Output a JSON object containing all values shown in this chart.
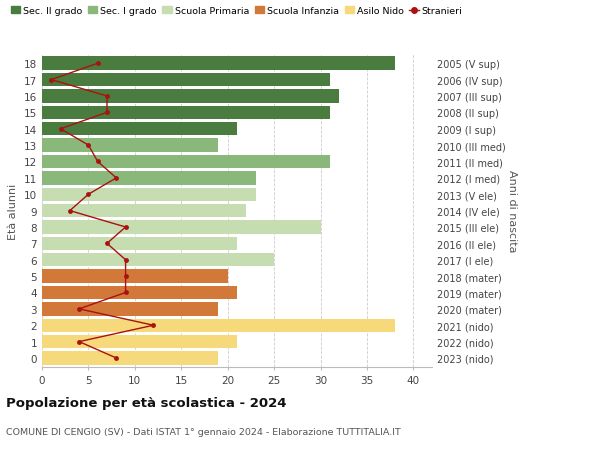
{
  "ages": [
    18,
    17,
    16,
    15,
    14,
    13,
    12,
    11,
    10,
    9,
    8,
    7,
    6,
    5,
    4,
    3,
    2,
    1,
    0
  ],
  "bar_values": [
    38,
    31,
    32,
    31,
    21,
    19,
    31,
    23,
    23,
    22,
    30,
    21,
    25,
    20,
    21,
    19,
    38,
    21,
    19
  ],
  "bar_colors": [
    "#4a7c3f",
    "#4a7c3f",
    "#4a7c3f",
    "#4a7c3f",
    "#4a7c3f",
    "#8ab87a",
    "#8ab87a",
    "#8ab87a",
    "#c5ddb0",
    "#c5ddb0",
    "#c5ddb0",
    "#c5ddb0",
    "#c5ddb0",
    "#d2793a",
    "#d2793a",
    "#d2793a",
    "#f5d97a",
    "#f5d97a",
    "#f5d97a"
  ],
  "stranieri_values": [
    6,
    1,
    7,
    7,
    2,
    5,
    6,
    8,
    5,
    3,
    9,
    7,
    9,
    9,
    9,
    4,
    12,
    4,
    8
  ],
  "right_labels": [
    "2005 (V sup)",
    "2006 (IV sup)",
    "2007 (III sup)",
    "2008 (II sup)",
    "2009 (I sup)",
    "2010 (III med)",
    "2011 (II med)",
    "2012 (I med)",
    "2013 (V ele)",
    "2014 (IV ele)",
    "2015 (III ele)",
    "2016 (II ele)",
    "2017 (I ele)",
    "2018 (mater)",
    "2019 (mater)",
    "2020 (mater)",
    "2021 (nido)",
    "2022 (nido)",
    "2023 (nido)"
  ],
  "legend_labels": [
    "Sec. II grado",
    "Sec. I grado",
    "Scuola Primaria",
    "Scuola Infanzia",
    "Asilo Nido",
    "Stranieri"
  ],
  "legend_colors": [
    "#4a7c3f",
    "#8ab87a",
    "#c5ddb0",
    "#d2793a",
    "#f5d97a",
    "#aa1111"
  ],
  "ylabel_left": "Età alunni",
  "ylabel_right": "Anni di nascita",
  "title": "Popolazione per età scolastica - 2024",
  "subtitle": "COMUNE DI CENGIO (SV) - Dati ISTAT 1° gennaio 2024 - Elaborazione TUTTITALIA.IT",
  "xlim": [
    0,
    42
  ],
  "stranieri_color": "#aa1111",
  "grid_color": "#cccccc",
  "bar_height": 0.82,
  "bg_color": "#ffffff"
}
